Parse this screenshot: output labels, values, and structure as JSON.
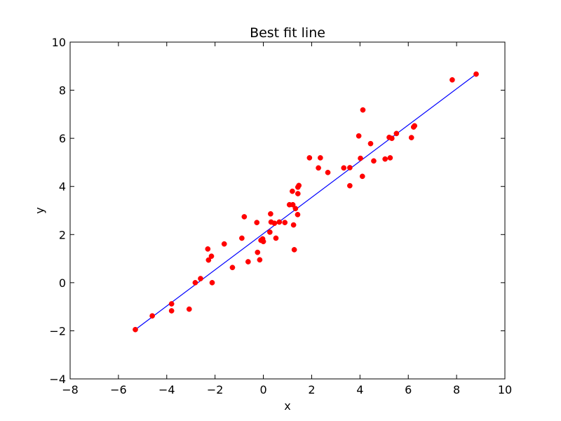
{
  "chart_data": {
    "type": "scatter",
    "title": "Best fit line",
    "xlabel": "x",
    "ylabel": "y",
    "xlim": [
      -8,
      10
    ],
    "ylim": [
      -4,
      10
    ],
    "xticks": [
      -8,
      -6,
      -4,
      -2,
      0,
      2,
      4,
      6,
      8,
      10
    ],
    "yticks": [
      -4,
      -2,
      0,
      2,
      4,
      6,
      8,
      10
    ],
    "xtick_labels": [
      "−8",
      "−6",
      "−4",
      "−2",
      "0",
      "2",
      "4",
      "6",
      "8",
      "10"
    ],
    "ytick_labels": [
      "−4",
      "−2",
      "0",
      "2",
      "4",
      "6",
      "8",
      "10"
    ],
    "grid": false,
    "colors": {
      "points": "#ff0000",
      "line": "#0000ff",
      "axes": "#000000",
      "background": "#ffffff"
    },
    "series": [
      {
        "kind": "points",
        "x": [
          -5.3,
          -4.6,
          -3.8,
          -3.8,
          -3.07,
          -2.82,
          -2.6,
          -2.3,
          -2.27,
          -2.15,
          -2.12,
          -1.62,
          -1.28,
          -0.89,
          -0.79,
          -0.63,
          -0.27,
          -0.24,
          -0.15,
          -0.1,
          -0.03,
          0.0,
          0.27,
          0.3,
          0.32,
          0.46,
          0.52,
          0.66,
          0.89,
          1.08,
          1.2,
          1.22,
          1.25,
          1.28,
          1.33,
          1.42,
          1.43,
          1.43,
          1.47,
          1.91,
          2.28,
          2.36,
          2.67,
          3.33,
          3.58,
          3.58,
          3.95,
          4.02,
          4.1,
          4.12,
          4.44,
          4.57,
          5.04,
          5.21,
          5.25,
          5.32,
          5.51,
          6.13,
          6.22,
          6.26,
          7.82,
          8.81
        ],
        "y": [
          -1.95,
          -1.38,
          -0.88,
          -1.17,
          -1.1,
          0.0,
          0.17,
          1.4,
          0.94,
          1.1,
          0.0,
          1.61,
          0.63,
          1.85,
          2.74,
          0.87,
          2.5,
          1.26,
          0.95,
          1.76,
          1.82,
          1.71,
          2.1,
          2.86,
          2.52,
          2.47,
          1.85,
          2.52,
          2.5,
          3.24,
          3.8,
          3.24,
          2.4,
          1.37,
          3.08,
          2.83,
          3.7,
          3.97,
          4.04,
          5.19,
          4.77,
          5.19,
          4.58,
          4.77,
          4.03,
          4.78,
          6.1,
          5.17,
          4.42,
          7.18,
          5.78,
          5.06,
          5.14,
          6.04,
          5.19,
          6.0,
          6.2,
          6.03,
          6.47,
          6.52,
          8.43,
          8.67
        ]
      },
      {
        "kind": "line",
        "x": [
          -5.3,
          8.81
        ],
        "y": [
          -1.95,
          8.67
        ]
      }
    ]
  }
}
